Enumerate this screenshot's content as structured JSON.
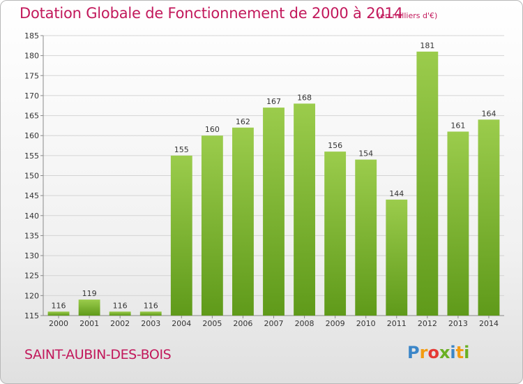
{
  "header": {
    "title": "Dotation Globale de Fonctionnement de 2000 à 2014",
    "subtitle": "(en milliers d'€)"
  },
  "footer": {
    "place": "SAINT-AUBIN-DES-BOIS",
    "brand": "Proxiti",
    "brand_letters": [
      {
        "char": "P",
        "color": "#3b86c8"
      },
      {
        "char": "r",
        "color": "#f39c12"
      },
      {
        "char": "o",
        "color": "#e53935"
      },
      {
        "char": "x",
        "color": "#6ab023"
      },
      {
        "char": "i",
        "color": "#3b86c8"
      },
      {
        "char": "t",
        "color": "#f39c12"
      },
      {
        "char": "i",
        "color": "#6ab023"
      }
    ]
  },
  "colors": {
    "title": "#c2185b",
    "bar_light": "#9bcc4c",
    "bar_dark": "#5f9a1a",
    "grid": "#d4d4d4",
    "axis": "#8a8a8a"
  },
  "chart_data": {
    "type": "bar",
    "categories": [
      "2000",
      "2001",
      "2002",
      "2003",
      "2004",
      "2005",
      "2006",
      "2007",
      "2008",
      "2009",
      "2010",
      "2011",
      "2012",
      "2013",
      "2014"
    ],
    "values": [
      116,
      119,
      116,
      116,
      155,
      160,
      162,
      167,
      168,
      156,
      154,
      144,
      181,
      161,
      164
    ],
    "ylim": [
      115,
      185
    ],
    "yticks": [
      115,
      120,
      125,
      130,
      135,
      140,
      145,
      150,
      155,
      160,
      165,
      170,
      175,
      180,
      185
    ],
    "grid": true,
    "data_labels": true
  }
}
